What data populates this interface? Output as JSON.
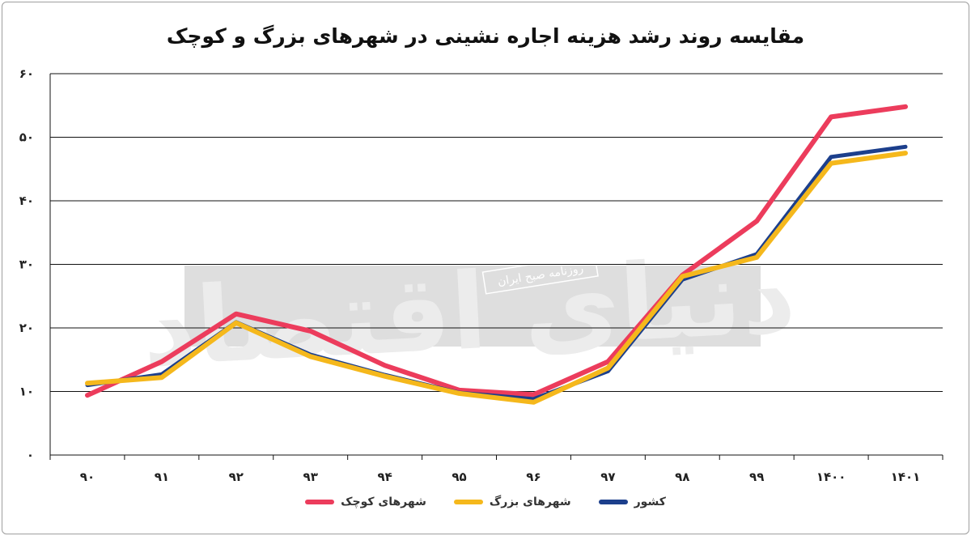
{
  "colors": {
    "country": "#1c3f8c",
    "big_cities": "#f5b81c",
    "small_cities": "#ec3c5c",
    "grid": "#111111",
    "watermark_band": "#dedede",
    "watermark_script": "#ececec"
  },
  "chart_data": {
    "type": "line",
    "title": "مقایسه روند رشد هزینه اجاره نشینی در شهرهای بزرگ و کوچک",
    "categories": [
      "۹۰",
      "۹۱",
      "۹۲",
      "۹۳",
      "۹۴",
      "۹۵",
      "۹۶",
      "۹۷",
      "۹۸",
      "۹۹",
      "۱۴۰۰",
      "۱۴۰۱"
    ],
    "y_ticks": [
      "۰",
      "۱۰",
      "۲۰",
      "۳۰",
      "۴۰",
      "۵۰",
      "۶۰"
    ],
    "ylim": [
      0,
      60
    ],
    "grid": true,
    "legend_position": "bottom-center",
    "series": [
      {
        "name": "کشور",
        "key": "country",
        "values": [
          11.0,
          12.7,
          20.9,
          15.8,
          12.6,
          9.8,
          8.8,
          13.2,
          27.6,
          31.6,
          46.9,
          48.5
        ]
      },
      {
        "name": "شهرهای بزرگ",
        "key": "big_cities",
        "values": [
          11.3,
          12.2,
          20.8,
          15.5,
          12.4,
          9.7,
          8.3,
          13.7,
          28.1,
          31.1,
          45.9,
          47.5
        ]
      },
      {
        "name": "شهرهای کوچک",
        "key": "small_cities",
        "values": [
          9.4,
          14.7,
          22.2,
          19.5,
          14.1,
          10.2,
          9.5,
          14.7,
          28.3,
          36.8,
          53.2,
          54.8
        ]
      }
    ]
  },
  "watermark": {
    "label": "روزنامه صبح ایران",
    "script": "دنیای اقتصاد"
  }
}
